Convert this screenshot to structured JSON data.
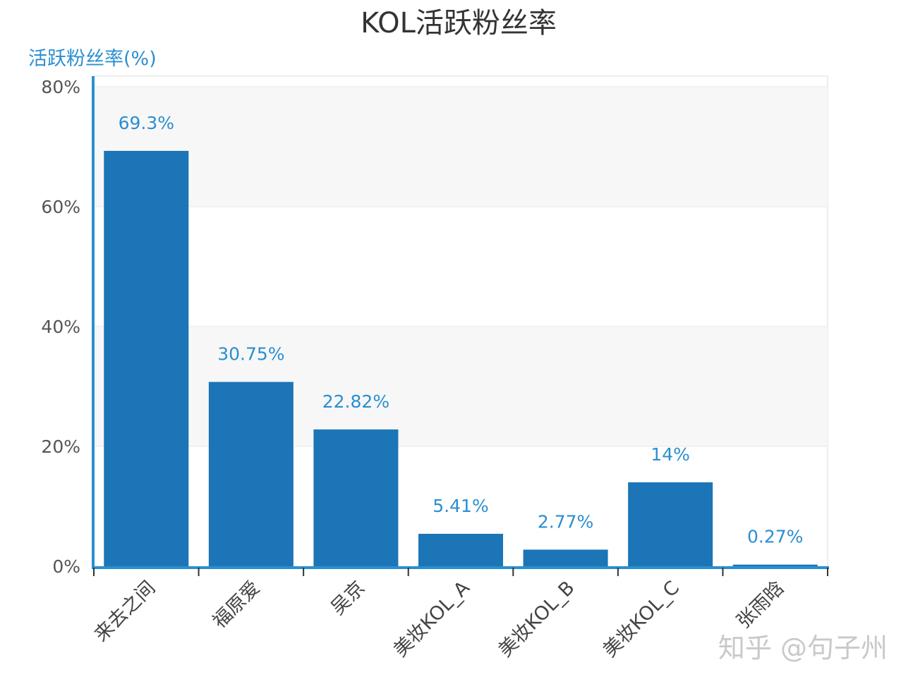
{
  "chart_data": {
    "type": "bar",
    "title": "KOL活跃粉丝率",
    "xlabel": "",
    "ylabel": "活跃粉丝率(%)",
    "categories": [
      "来去之间",
      "福原爱",
      "吴京",
      "美妆KOL_A",
      "美妆KOL_B",
      "美妆KOL_C",
      "张雨晗"
    ],
    "series": [
      {
        "values": [
          69.3,
          30.75,
          22.82,
          5.41,
          2.77,
          14,
          0.27
        ]
      }
    ],
    "data_labels": [
      "69.3%",
      "30.75%",
      "22.82%",
      "5.41%",
      "2.77%",
      "14%",
      "0.27%"
    ],
    "ylim": [
      0,
      80
    ],
    "yticks": [
      0,
      20,
      40,
      60,
      80
    ],
    "ytick_labels": [
      "0%",
      "20%",
      "40%",
      "60%",
      "80%"
    ],
    "grid": true,
    "legend": "none",
    "colors": {
      "bar": "#1b75b6",
      "axis": "#2a8fd0",
      "label": "#2a8fd0",
      "band": "#f7f7f7",
      "grid": "#eeeeee"
    }
  },
  "watermark": "知乎 @句子州"
}
